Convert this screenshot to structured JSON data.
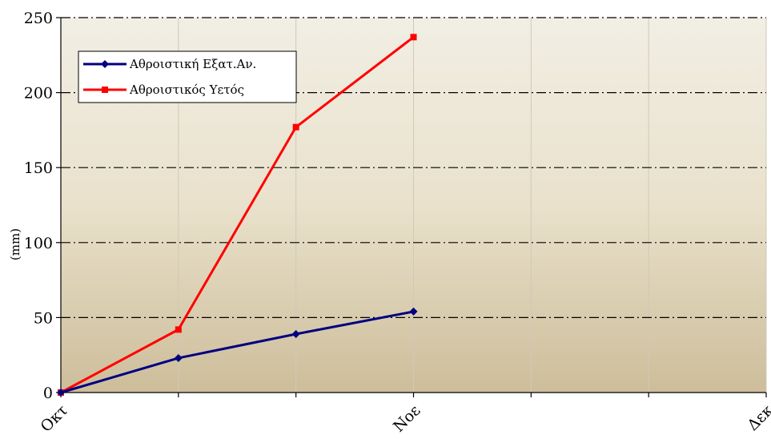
{
  "chart_data": {
    "type": "line",
    "title": "",
    "xlabel": "",
    "ylabel": "(mm)",
    "ylim": [
      0,
      250
    ],
    "y_ticks": [
      0,
      50,
      100,
      150,
      200,
      250
    ],
    "x_count": 7,
    "x_tick_labels": [
      {
        "index": 0,
        "label": "Οκτ"
      },
      {
        "index": 3,
        "label": "Νοε"
      },
      {
        "index": 6,
        "label": "Δεκ"
      }
    ],
    "grid": {
      "horizontal": "dash-dot",
      "vertical": "light"
    },
    "legend_position": "top-left",
    "series": [
      {
        "name": "Αθροιστική Εξατ.Αν.",
        "color": "#000080",
        "marker": "diamond",
        "x": [
          0,
          1,
          2,
          3
        ],
        "values": [
          0,
          23,
          39,
          54
        ]
      },
      {
        "name": "Αθροιστικός Υετός",
        "color": "#ff0000",
        "marker": "square",
        "x": [
          0,
          1,
          2,
          3
        ],
        "values": [
          0,
          42,
          177,
          237
        ]
      }
    ]
  }
}
